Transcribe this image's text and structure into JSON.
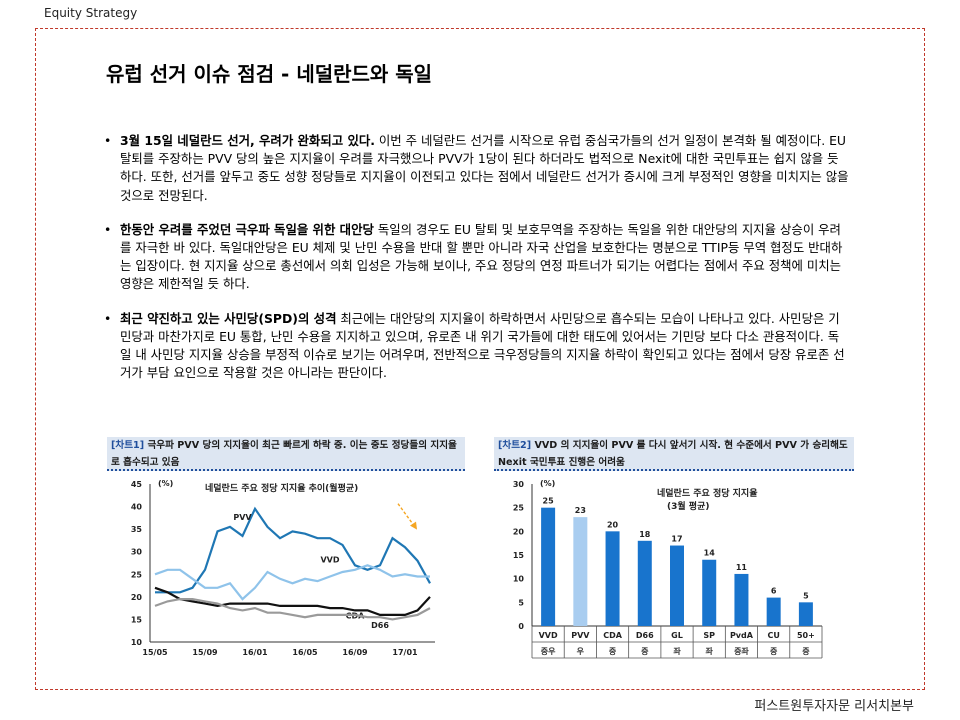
{
  "header": {
    "label": "Equity Strategy"
  },
  "title": "유럽 선거 이슈 점검 - 네덜란드와 독일",
  "bullets": [
    {
      "bold": "3월 15일 네덜란드 선거, 우려가 완화되고 있다.",
      "text": " 이번 주 네덜란드 선거를 시작으로 유럽 중심국가들의 선거 일정이 본격화 될 예정이다. EU 탈퇴를 주장하는 PVV 당의 높은 지지율이 우려를 자극했으나 PVV가 1당이 된다 하더라도 법적으로 Nexit에 대한 국민투표는 쉽지 않을 듯 하다.  또한, 선거를 앞두고 중도 성향 정당들로 지지율이 이전되고 있다는 점에서 네덜란드 선거가 증시에 크게 부정적인 영향을 미치지는 않을 것으로 전망된다."
    },
    {
      "bold": "한동안 우려를 주었던 극우파 독일을 위한 대안당",
      "text": " 독일의 경우도 EU 탈퇴 및 보호무역을 주장하는 독일을 위한 대안당의 지지율 상승이 우려를 자극한 바 있다. 독일대안당은 EU 체제 및 난민 수용을 반대 할 뿐만 아니라 자국 산업을 보호한다는 명분으로 TTIP등 무역 협정도 반대하는 입장이다.  현 지지율 상으로 총선에서 의회 입성은 가능해 보이나, 주요 정당의 연정 파트너가 되기는 어렵다는 점에서 주요 정책에 미치는 영향은 제한적일 듯 하다."
    },
    {
      "bold": "최근 약진하고 있는 사민당(SPD)의 성격",
      "text": " 최근에는 대안당의 지지율이 하락하면서 사민당으로 흡수되는 모습이 나타나고 있다. 사민당은 기민당과 마찬가지로 EU 통합, 난민 수용을 지지하고 있으며, 유로존 내 위기 국가들에 대한 태도에 있어서는 기민당 보다 다소 관용적이다.  독일 내 사민당 지지율 상승을 부정적 이슈로 보기는 어려우며, 전반적으로 극우정당들의 지지율 하락이 확인되고 있다는 점에서 당장 유로존 선거가 부담 요인으로 작용할 것은 아니라는 판단이다."
    }
  ],
  "chart1": {
    "caption_tag": "[차트1]",
    "caption_text": " 극우파 PVV 당의 지지율이 최근 빠르게 하락 중. 이는 중도 정당들의 지지율로 흡수되고 있음"
  },
  "chart2": {
    "caption_tag": "[차트2]",
    "caption_text": " VVD 의 지지율이 PVV 를 다시 앞서기 시작. 현 수준에서 PVV 가 승리해도 Nexit 국민투표 진행은 어려움"
  },
  "chart_data": [
    {
      "type": "line",
      "title": "네덜란드 주요 정당 지지율 추이(월평균)",
      "ylabel": "(%)",
      "ylim": [
        10,
        45
      ],
      "yticks": [
        10,
        15,
        20,
        25,
        30,
        35,
        40,
        45
      ],
      "xticks": [
        "15/05",
        "15/09",
        "16/01",
        "16/05",
        "16/09",
        "17/01"
      ],
      "x": [
        "15/05",
        "15/06",
        "15/07",
        "15/08",
        "15/09",
        "15/10",
        "15/11",
        "15/12",
        "16/01",
        "16/02",
        "16/03",
        "16/04",
        "16/05",
        "16/06",
        "16/07",
        "16/08",
        "16/09",
        "16/10",
        "16/11",
        "16/12",
        "17/01",
        "17/02",
        "17/03"
      ],
      "series": [
        {
          "name": "PVV",
          "color": "#1f77b4",
          "values": [
            21,
            21,
            21,
            22,
            26,
            34.5,
            35.5,
            33.5,
            39.5,
            35.5,
            33,
            34.5,
            34,
            33,
            33,
            31.5,
            27,
            26,
            27,
            33,
            31,
            28,
            23
          ]
        },
        {
          "name": "VVD",
          "color": "#8fc3ea",
          "values": [
            25,
            26,
            26,
            24,
            22,
            22,
            23,
            19.5,
            22,
            25.5,
            24,
            23,
            24,
            23.5,
            24.5,
            25.5,
            26,
            27,
            26,
            24.5,
            25,
            24.5,
            24.5
          ]
        },
        {
          "name": "CDA",
          "color": "#111111",
          "values": [
            22,
            21,
            19.5,
            19,
            18.5,
            18,
            18.5,
            18.5,
            18.5,
            18.5,
            18,
            18,
            18,
            18,
            17.5,
            17.5,
            17,
            17,
            16,
            16,
            16,
            17,
            20
          ]
        },
        {
          "name": "D66",
          "color": "#9a9a9a",
          "values": [
            18,
            19,
            19.5,
            19.5,
            19,
            18.5,
            17.5,
            17,
            17.5,
            16.5,
            16.5,
            16,
            15.5,
            16,
            16,
            16,
            16,
            15.5,
            15.5,
            15,
            15.5,
            16,
            17.5
          ]
        }
      ]
    },
    {
      "type": "bar",
      "title": "네덜란드 주요 정당 지지율",
      "subtitle": "(3월 평균)",
      "ylabel": "(%)",
      "ylim": [
        0,
        30
      ],
      "yticks": [
        0,
        5,
        10,
        15,
        20,
        25,
        30
      ],
      "categories": [
        "VVD",
        "PVV",
        "CDA",
        "D66",
        "GL",
        "SP",
        "PvdA",
        "CU",
        "50+"
      ],
      "values": [
        25,
        23,
        20,
        18,
        17,
        14,
        11,
        6,
        5
      ],
      "bar_colors": [
        "#1874cd",
        "#a9cdf0",
        "#1874cd",
        "#1874cd",
        "#1874cd",
        "#1874cd",
        "#1874cd",
        "#1874cd",
        "#1874cd"
      ],
      "sublabels": [
        "중우",
        "우",
        "중",
        "중",
        "좌",
        "좌",
        "중좌",
        "중",
        "중"
      ]
    }
  ],
  "footer": {
    "label": "퍼스트원투자자문 리서치본부"
  }
}
